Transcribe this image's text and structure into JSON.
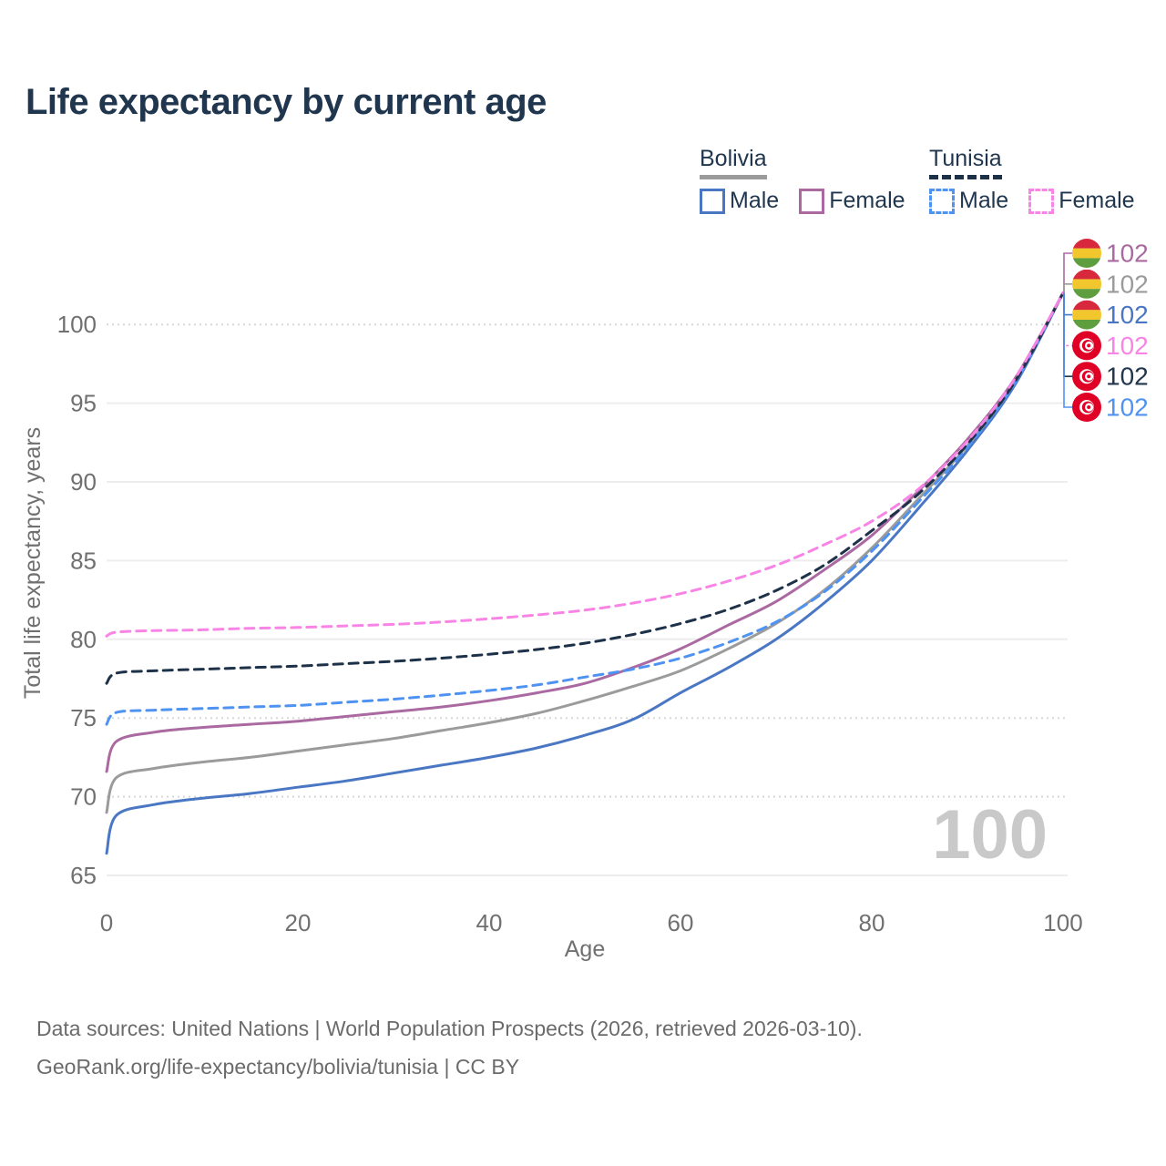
{
  "title": "Life expectancy by current age",
  "legend": {
    "groups": [
      {
        "label": "Bolivia",
        "style": "solid",
        "color": "#9b9b9b"
      },
      {
        "label": "Tunisia",
        "style": "dashed",
        "color": "#1d3149"
      }
    ],
    "items": [
      {
        "label": "Male",
        "country": "Bolivia",
        "style": "solid",
        "color": "#4a77c4"
      },
      {
        "label": "Female",
        "country": "Bolivia",
        "style": "solid",
        "color": "#aa6aa1"
      },
      {
        "label": "Male",
        "country": "Tunisia",
        "style": "dashed",
        "color": "#4f93f2"
      },
      {
        "label": "Female",
        "country": "Tunisia",
        "style": "dashed",
        "color": "#f884e6"
      }
    ]
  },
  "chart_data": {
    "type": "line",
    "title": "Life expectancy by current age",
    "xlabel": "Age",
    "ylabel": "Total life expectancy, years",
    "xlim": [
      0,
      100
    ],
    "ylim": [
      65,
      102
    ],
    "grid": "on",
    "legend_position": "top-right",
    "x": [
      0,
      1,
      5,
      10,
      15,
      20,
      25,
      30,
      35,
      40,
      45,
      50,
      55,
      60,
      65,
      70,
      75,
      80,
      85,
      90,
      95,
      100
    ],
    "x_ticks": [
      0,
      20,
      40,
      60,
      80,
      100
    ],
    "y_ticks": [
      {
        "v": 65,
        "style": "solid"
      },
      {
        "v": 70,
        "style": "dotted"
      },
      {
        "v": 75,
        "style": "dotted"
      },
      {
        "v": 80,
        "style": "solid"
      },
      {
        "v": 85,
        "style": "solid"
      },
      {
        "v": 90,
        "style": "solid"
      },
      {
        "v": 95,
        "style": "solid"
      },
      {
        "v": 100,
        "style": "dotted"
      }
    ],
    "series": [
      {
        "name": "Bolivia Male",
        "country": "Bolivia",
        "color": "#4a77c4",
        "dash": "solid",
        "values": [
          66.4,
          68.8,
          69.5,
          69.9,
          70.2,
          70.6,
          71.0,
          71.5,
          72.0,
          72.5,
          73.1,
          73.9,
          74.9,
          76.6,
          78.2,
          80.0,
          82.3,
          85.0,
          88.4,
          92.0,
          96.2,
          102
        ]
      },
      {
        "name": "Bolivia",
        "country": "Bolivia",
        "color": "#9b9b9b",
        "dash": "solid",
        "values": [
          69.0,
          71.2,
          71.8,
          72.2,
          72.5,
          72.9,
          73.3,
          73.7,
          74.2,
          74.7,
          75.3,
          76.1,
          77.0,
          78.0,
          79.4,
          81.0,
          83.1,
          85.8,
          89.0,
          92.3,
          96.4,
          102
        ]
      },
      {
        "name": "Bolivia Female",
        "country": "Bolivia",
        "color": "#aa6aa1",
        "dash": "solid",
        "values": [
          71.6,
          73.5,
          74.1,
          74.4,
          74.6,
          74.8,
          75.1,
          75.4,
          75.7,
          76.1,
          76.6,
          77.2,
          78.2,
          79.4,
          80.9,
          82.4,
          84.4,
          86.6,
          89.5,
          92.7,
          96.6,
          102
        ]
      },
      {
        "name": "Tunisia Male",
        "country": "Tunisia",
        "color": "#4f93f2",
        "dash": "dashed",
        "values": [
          74.6,
          75.35,
          75.5,
          75.6,
          75.7,
          75.8,
          76.0,
          76.2,
          76.45,
          76.75,
          77.1,
          77.6,
          78.1,
          78.8,
          79.8,
          81.1,
          83.0,
          85.6,
          88.8,
          92.2,
          96.3,
          102
        ]
      },
      {
        "name": "Tunisia",
        "country": "Tunisia",
        "color": "#1d3149",
        "dash": "dashed",
        "values": [
          77.2,
          77.85,
          78.0,
          78.1,
          78.2,
          78.3,
          78.45,
          78.6,
          78.8,
          79.05,
          79.35,
          79.75,
          80.3,
          81.0,
          81.9,
          83.1,
          84.7,
          86.9,
          89.3,
          92.4,
          96.4,
          102
        ]
      },
      {
        "name": "Tunisia Female",
        "country": "Tunisia",
        "color": "#f884e6",
        "dash": "dashed",
        "values": [
          80.2,
          80.45,
          80.55,
          80.6,
          80.7,
          80.75,
          80.85,
          80.95,
          81.1,
          81.3,
          81.55,
          81.85,
          82.3,
          82.9,
          83.7,
          84.7,
          86.0,
          87.5,
          89.6,
          92.6,
          96.6,
          102
        ]
      }
    ],
    "end_labels": [
      {
        "series": "Bolivia Female",
        "flag": "bolivia",
        "value": "102",
        "color": "#aa6aa1"
      },
      {
        "series": "Bolivia",
        "flag": "bolivia",
        "value": "102",
        "color": "#9b9b9b"
      },
      {
        "series": "Bolivia Male",
        "flag": "bolivia",
        "value": "102",
        "color": "#4a77c4"
      },
      {
        "series": "Tunisia Female",
        "flag": "tunisia",
        "value": "102",
        "color": "#f884e6"
      },
      {
        "series": "Tunisia",
        "flag": "tunisia",
        "value": "102",
        "color": "#22364e"
      },
      {
        "series": "Tunisia Male",
        "flag": "tunisia",
        "value": "102",
        "color": "#4f93f2"
      }
    ],
    "watermark": "100"
  },
  "footer": {
    "line1": "Data sources: United Nations | World Population Prospects (2026, retrieved 2026-03-10).",
    "line2": "GeoRank.org/life-expectancy/bolivia/tunisia | CC BY"
  },
  "colors": {
    "title_text": "#1f364e",
    "tick_text": "#707070",
    "grid_solid": "#ededed",
    "grid_dotted": "#d8d8d8",
    "watermark": "#c9c9c9",
    "footer_text": "#6b6b6b"
  }
}
